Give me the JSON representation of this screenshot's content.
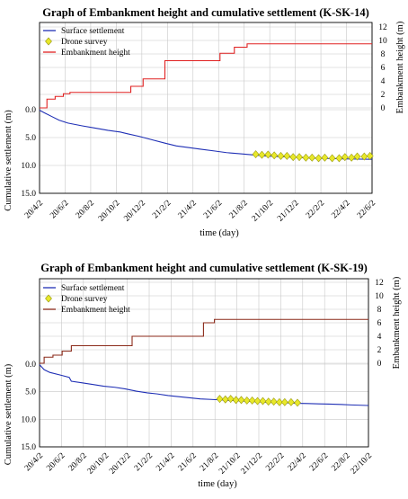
{
  "chart_data": [
    {
      "type": "line",
      "title": "Graph of Embankment height and cumulative settlement (K-SK-14)",
      "xlabel": "time (day)",
      "ylabel_left": "Cumulative settlement (m)",
      "ylabel_right": "Embankment height (m)",
      "x_start": "2020-04-02",
      "x_end": "2022-06-20",
      "x_ticks": [
        "20/4/2",
        "20/6/2",
        "20/8/2",
        "20/10/2",
        "20/12/2",
        "21/2/2",
        "21/4/2",
        "21/6/2",
        "21/8/2",
        "21/10/2",
        "21/12/2",
        "22/2/2",
        "22/4/2",
        "22/6/2"
      ],
      "left_ticks": [
        "0.0",
        "5.0",
        "10.0",
        "15.0"
      ],
      "right_ticks": [
        "0",
        "2",
        "4",
        "6",
        "8",
        "10",
        "12"
      ],
      "settlement_ylim": [
        0,
        15
      ],
      "height_ylim": [
        0,
        12
      ],
      "legend_position": "top-left",
      "grid": true,
      "series": [
        {
          "name": "Surface settlement",
          "color": "#1f2fb5",
          "axis": "left",
          "x": [
            "2020-04-02",
            "2020-04-15",
            "2020-05-01",
            "2020-05-20",
            "2020-06-10",
            "2020-07-15",
            "2020-08-15",
            "2020-09-15",
            "2020-10-15",
            "2020-11-01",
            "2020-12-01",
            "2021-01-01",
            "2021-02-01",
            "2021-03-01",
            "2021-04-01",
            "2021-05-01",
            "2021-06-01",
            "2021-07-01",
            "2021-08-01",
            "2021-09-01",
            "2021-10-01",
            "2021-11-01",
            "2021-12-01",
            "2022-01-01",
            "2022-02-01",
            "2022-03-01",
            "2022-04-01",
            "2022-05-01",
            "2022-06-20"
          ],
          "values": [
            0.1,
            0.6,
            1.2,
            1.9,
            2.4,
            2.9,
            3.3,
            3.7,
            4.0,
            4.3,
            4.8,
            5.4,
            6.0,
            6.5,
            6.8,
            7.1,
            7.4,
            7.7,
            7.9,
            8.1,
            8.3,
            8.4,
            8.5,
            8.6,
            8.7,
            8.75,
            8.8,
            8.85,
            8.9
          ]
        },
        {
          "name": "Drone survey",
          "color": "#e8e82a",
          "axis": "left",
          "marker": "diamond",
          "x": [
            "2021-09-10",
            "2021-09-25",
            "2021-10-10",
            "2021-10-25",
            "2021-11-10",
            "2021-11-25",
            "2021-12-10",
            "2021-12-25",
            "2022-01-10",
            "2022-01-25",
            "2022-02-10",
            "2022-02-25",
            "2022-03-15",
            "2022-04-01",
            "2022-04-15",
            "2022-05-01",
            "2022-05-15",
            "2022-06-01",
            "2022-06-15"
          ],
          "values": [
            8.0,
            8.1,
            8.05,
            8.2,
            8.3,
            8.3,
            8.5,
            8.5,
            8.6,
            8.6,
            8.7,
            8.6,
            8.7,
            8.7,
            8.5,
            8.6,
            8.4,
            8.4,
            8.3
          ]
        },
        {
          "name": "Embankment height",
          "color": "#e02020",
          "axis": "right",
          "step": true,
          "x": [
            "2020-04-02",
            "2020-04-20",
            "2020-05-10",
            "2020-05-30",
            "2020-06-15",
            "2020-11-10",
            "2020-12-10",
            "2021-02-01",
            "2021-06-15",
            "2021-07-20",
            "2021-08-20",
            "2022-06-20"
          ],
          "values": [
            0,
            1.3,
            1.7,
            2.1,
            2.3,
            3.2,
            4.3,
            7.0,
            8.1,
            9.0,
            9.5,
            9.5
          ]
        }
      ]
    },
    {
      "type": "line",
      "title": "Graph of Embankment height and cumulative settlement (K-SK-19)",
      "xlabel": "time (day)",
      "ylabel_left": "Cumulative settlement (m)",
      "ylabel_right": "Embankment height (m)",
      "x_start": "2020-04-02",
      "x_end": "2022-10-20",
      "x_ticks": [
        "20/4/2",
        "20/6/2",
        "20/8/2",
        "20/10/2",
        "20/12/2",
        "21/2/2",
        "21/4/2",
        "21/6/2",
        "21/8/2",
        "21/10/2",
        "21/12/2",
        "22/2/2",
        "22/4/2",
        "22/6/2",
        "22/8/2",
        "22/10/2"
      ],
      "left_ticks": [
        "0.0",
        "5.0",
        "10.0",
        "15.0"
      ],
      "right_ticks": [
        "0",
        "2",
        "4",
        "6",
        "8",
        "10",
        "12"
      ],
      "settlement_ylim": [
        0,
        15
      ],
      "height_ylim": [
        0,
        12
      ],
      "legend_position": "top-left",
      "grid": true,
      "series": [
        {
          "name": "Surface settlement",
          "color": "#1f2fb5",
          "axis": "left",
          "x": [
            "2020-04-02",
            "2020-04-15",
            "2020-05-01",
            "2020-06-01",
            "2020-06-25",
            "2020-07-01",
            "2020-08-01",
            "2020-09-01",
            "2020-10-01",
            "2020-11-01",
            "2020-12-01",
            "2021-01-01",
            "2021-02-01",
            "2021-03-01",
            "2021-04-01",
            "2021-05-01",
            "2021-06-01",
            "2021-07-01",
            "2021-08-01",
            "2021-09-01",
            "2021-10-01",
            "2021-11-01",
            "2021-12-01",
            "2022-01-01",
            "2022-02-01",
            "2022-03-01",
            "2022-04-01",
            "2022-05-01",
            "2022-06-01",
            "2022-07-01",
            "2022-08-01",
            "2022-09-01",
            "2022-10-20"
          ],
          "values": [
            0.1,
            1.0,
            1.5,
            2.0,
            2.4,
            3.1,
            3.4,
            3.7,
            4.0,
            4.2,
            4.5,
            4.9,
            5.2,
            5.4,
            5.7,
            5.9,
            6.1,
            6.3,
            6.4,
            6.5,
            6.6,
            6.7,
            6.8,
            6.9,
            6.95,
            7.0,
            7.1,
            7.15,
            7.2,
            7.25,
            7.3,
            7.4,
            7.5
          ]
        },
        {
          "name": "Drone survey",
          "color": "#e8e82a",
          "axis": "left",
          "marker": "diamond",
          "x": [
            "2021-08-25",
            "2021-09-10",
            "2021-09-25",
            "2021-10-10",
            "2021-10-25",
            "2021-11-10",
            "2021-11-25",
            "2021-12-10",
            "2021-12-25",
            "2022-01-10",
            "2022-01-25",
            "2022-02-10",
            "2022-02-25",
            "2022-03-15",
            "2022-04-02"
          ],
          "values": [
            6.3,
            6.4,
            6.3,
            6.5,
            6.5,
            6.6,
            6.6,
            6.7,
            6.7,
            6.8,
            6.8,
            6.9,
            6.9,
            6.9,
            7.0
          ]
        },
        {
          "name": "Embankment height",
          "color": "#8b2a1a",
          "axis": "right",
          "step": true,
          "x": [
            "2020-04-02",
            "2020-04-15",
            "2020-05-10",
            "2020-06-05",
            "2020-07-01",
            "2020-12-20",
            "2021-07-10",
            "2021-08-10",
            "2022-10-20"
          ],
          "values": [
            0,
            0.9,
            1.2,
            1.8,
            2.6,
            4.0,
            6.0,
            6.5,
            6.5
          ]
        }
      ]
    }
  ]
}
